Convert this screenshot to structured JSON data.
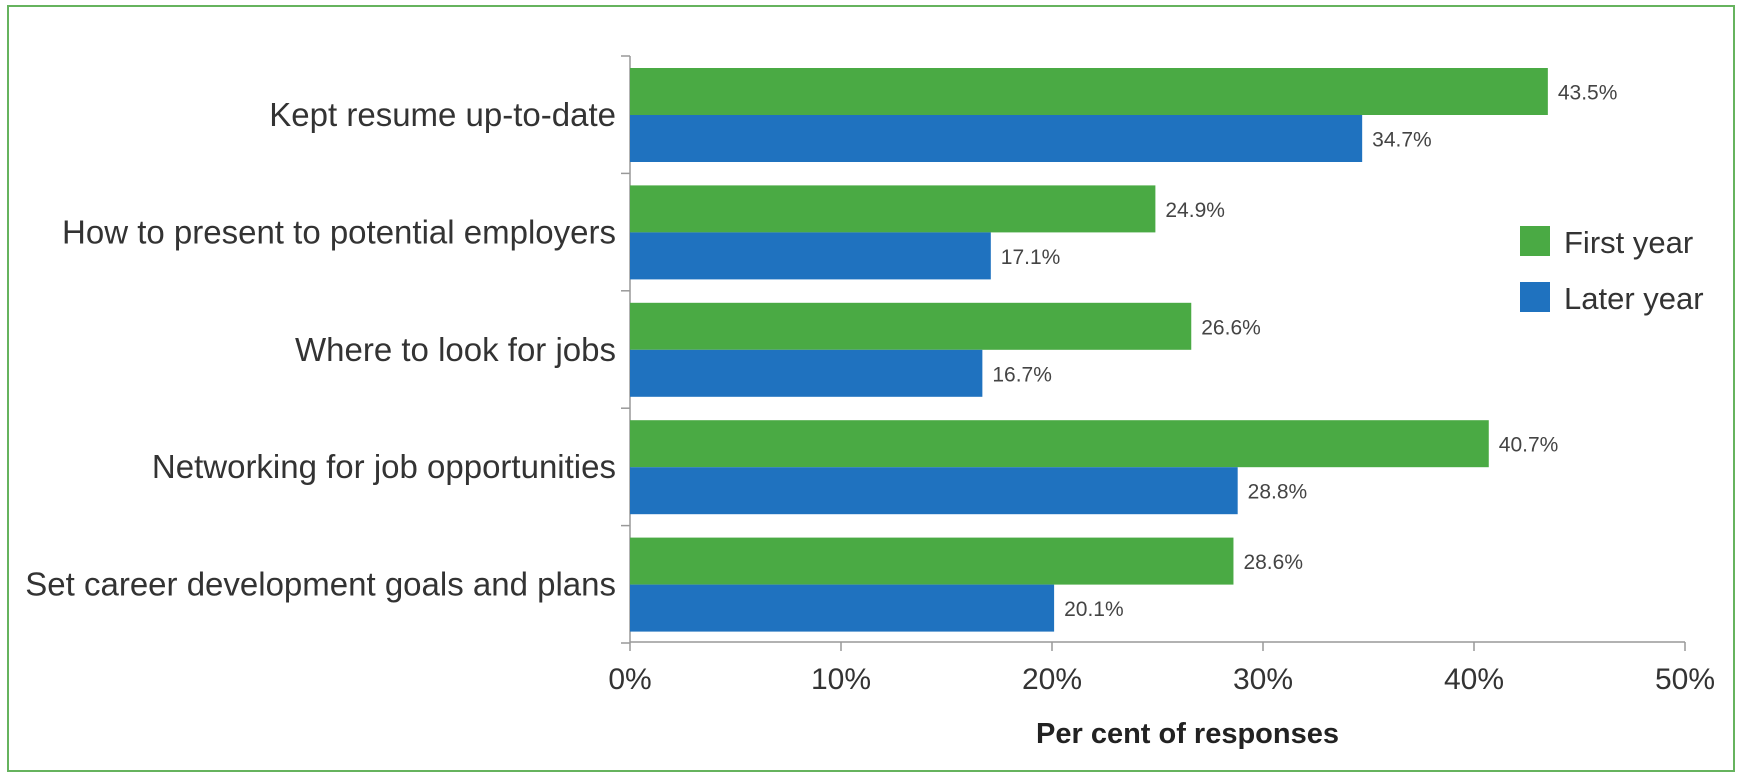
{
  "chart_data": {
    "type": "bar",
    "orientation": "horizontal",
    "title": "",
    "xlabel": "Per cent of responses",
    "ylabel": "",
    "xlim": [
      0,
      50
    ],
    "x_ticks": [
      0,
      10,
      20,
      30,
      40,
      50
    ],
    "x_tick_labels": [
      "0%",
      "10%",
      "20%",
      "30%",
      "40%",
      "50%"
    ],
    "grid": false,
    "legend_position": "right",
    "categories": [
      "Kept resume up-to-date",
      "How to present to potential employers",
      "Where to look for jobs",
      "Networking for job opportunities",
      "Set career development goals and plans"
    ],
    "series": [
      {
        "name": "First year",
        "color": "#4aaa44",
        "values": [
          43.5,
          24.9,
          26.6,
          40.7,
          28.6
        ],
        "labels": [
          "43.5%",
          "24.9%",
          "26.6%",
          "40.7%",
          "28.6%"
        ]
      },
      {
        "name": "Later year",
        "color": "#1f72bf",
        "values": [
          34.7,
          17.1,
          16.7,
          28.8,
          20.1
        ],
        "labels": [
          "34.7%",
          "17.1%",
          "16.7%",
          "28.8%",
          "20.1%"
        ]
      }
    ]
  },
  "colors": {
    "frame_border": "#66b35e",
    "axis": "#999999"
  }
}
